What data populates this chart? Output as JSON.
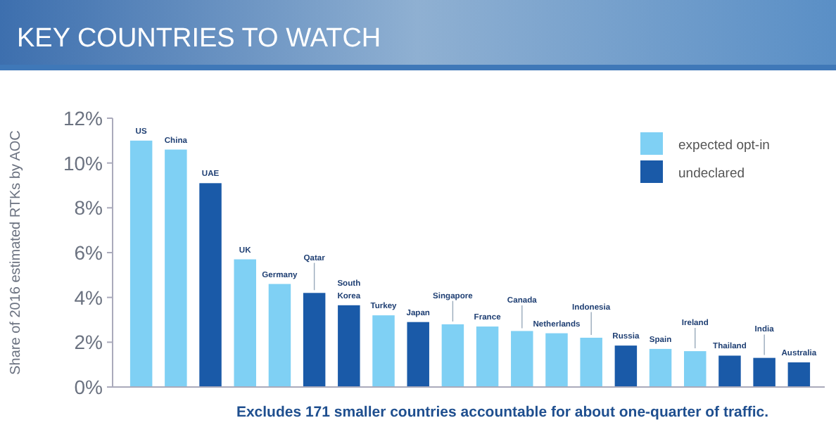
{
  "chart_data": {
    "type": "bar",
    "title": "KEY COUNTRIES TO WATCH",
    "ylabel": "Share of 2016 estimated RTKs by AOC",
    "categories": [
      "US",
      "China",
      "UAE",
      "UK",
      "Germany",
      "Qatar",
      "South Korea",
      "Turkey",
      "Japan",
      "Singapore",
      "France",
      "Canada",
      "Netherlands",
      "Indonesia",
      "Russia",
      "Spain",
      "Ireland",
      "Thailand",
      "India",
      "Australia"
    ],
    "series": [
      {
        "name": "expected opt-in",
        "color": "#7fd0f4",
        "values": [
          11.0,
          10.6,
          null,
          5.7,
          4.6,
          null,
          null,
          3.2,
          null,
          2.8,
          2.7,
          2.5,
          2.4,
          2.2,
          null,
          1.7,
          1.6,
          null,
          null,
          null
        ]
      },
      {
        "name": "undeclared",
        "color": "#1a5aa8",
        "values": [
          null,
          null,
          9.1,
          null,
          null,
          4.2,
          3.65,
          null,
          2.9,
          null,
          null,
          null,
          null,
          null,
          1.85,
          null,
          null,
          1.4,
          1.3,
          1.1
        ]
      }
    ],
    "ylim": [
      0,
      12
    ],
    "yticks": [
      {
        "value": 0,
        "label": "0%"
      },
      {
        "value": 2,
        "label": "2%"
      },
      {
        "value": 4,
        "label": "4%"
      },
      {
        "value": 6,
        "label": "6%"
      },
      {
        "value": 8,
        "label": "8%"
      },
      {
        "value": 10,
        "label": "10%"
      },
      {
        "value": 12,
        "label": "12%"
      }
    ],
    "grid": false,
    "legend": "top right",
    "annotations": [
      "Excludes 171 smaller countries accountable for about one-quarter of traffic."
    ]
  }
}
